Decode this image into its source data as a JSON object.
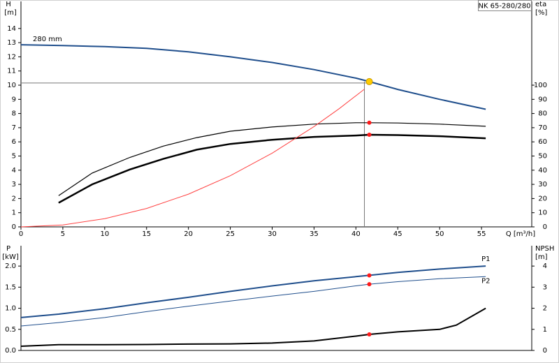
{
  "chart_data": [
    {
      "type": "line",
      "model": "NK 65-280/280",
      "y_label": "H",
      "y_unit": "[m]",
      "y2_label": "eta",
      "y2_unit": "[%]",
      "x_label": "Q [m³/h]",
      "xlim": [
        0,
        61
      ],
      "xticks": [
        0,
        5,
        10,
        15,
        20,
        25,
        30,
        35,
        40,
        45,
        50,
        55
      ],
      "ylim": [
        0,
        15
      ],
      "yticks": [
        0,
        1,
        2,
        3,
        4,
        5,
        6,
        7,
        8,
        9,
        10,
        11,
        12,
        13,
        14
      ],
      "y2lim": [
        0,
        150
      ],
      "y2ticks": [
        0,
        10,
        20,
        30,
        40,
        50,
        60,
        70,
        80,
        90,
        100
      ],
      "duty_point": {
        "x": 41.6,
        "y": 10.25
      },
      "series": [
        {
          "name": "280 mm",
          "color": "#1f4e8c",
          "width": 2,
          "x": [
            0,
            5,
            10,
            15,
            20,
            25,
            30,
            35,
            40,
            41.6,
            45,
            50,
            55.5
          ],
          "values": [
            12.85,
            12.8,
            12.72,
            12.6,
            12.35,
            12.0,
            11.6,
            11.1,
            10.5,
            10.25,
            9.7,
            9.0,
            8.3
          ]
        },
        {
          "color": "#000000",
          "width": 1.2,
          "axis": "y2",
          "x": [
            4.5,
            8.5,
            13,
            17,
            21,
            25,
            30,
            35,
            40,
            41.6,
            45,
            50,
            55.5
          ],
          "values": [
            22,
            38,
            49,
            57,
            63,
            67.5,
            70.5,
            72.5,
            73.5,
            73.5,
            73.3,
            72.5,
            71
          ]
        },
        {
          "color": "#000000",
          "width": 2.5,
          "axis": "y2",
          "x": [
            4.5,
            8.5,
            13,
            17,
            21,
            25,
            30,
            35,
            40,
            41.6,
            45,
            50,
            55.5
          ],
          "values": [
            17,
            30,
            40.5,
            48,
            54.5,
            58.5,
            61.5,
            63.5,
            64.5,
            65,
            64.8,
            64,
            62.5
          ]
        },
        {
          "color": "#ff4040",
          "width": 1,
          "x": [
            0,
            5,
            10,
            15,
            20,
            25,
            30,
            35,
            38,
            41
          ],
          "values": [
            0,
            0.14,
            0.58,
            1.3,
            2.31,
            3.61,
            5.2,
            7.08,
            8.34,
            9.71
          ]
        }
      ]
    },
    {
      "type": "line",
      "y_label": "P",
      "y_unit": "[kW]",
      "y2_label": "NPSH",
      "y2_unit": "[m]",
      "xlim": [
        0,
        61
      ],
      "ylim": [
        0,
        2.35
      ],
      "yticks": [
        {
          "value": 0,
          "label": "0.0"
        },
        {
          "value": 0.5,
          "label": "0.5"
        },
        {
          "value": 1,
          "label": "1.0"
        },
        {
          "value": 1.5,
          "label": "1.5"
        },
        {
          "value": 2,
          "label": "2.0"
        }
      ],
      "y2lim": [
        0,
        4.7
      ],
      "y2ticks": [
        0,
        1,
        2,
        3,
        4
      ],
      "duty_point": {
        "x": 41.6
      },
      "series": [
        {
          "name": "P1",
          "color": "#1f4e8c",
          "width": 2,
          "x": [
            0,
            4.5,
            10,
            15,
            20,
            25,
            30,
            35,
            40,
            41.6,
            45,
            50,
            55.5
          ],
          "values": [
            0.78,
            0.86,
            0.99,
            1.13,
            1.26,
            1.4,
            1.53,
            1.65,
            1.75,
            1.78,
            1.85,
            1.93,
            2.0
          ]
        },
        {
          "name": "P2",
          "color": "#1f4e8c",
          "width": 1,
          "x": [
            0,
            4.5,
            10,
            15,
            20,
            25,
            30,
            35,
            40,
            41.6,
            45,
            50,
            55.5
          ],
          "values": [
            0.58,
            0.66,
            0.78,
            0.92,
            1.05,
            1.17,
            1.29,
            1.4,
            1.53,
            1.57,
            1.63,
            1.7,
            1.75
          ]
        },
        {
          "color": "#000000",
          "width": 2,
          "axis": "y2",
          "x": [
            0,
            4.5,
            10,
            15,
            20,
            25,
            30,
            35,
            40,
            41.6,
            45,
            50,
            52,
            55.5
          ],
          "values": [
            0.2,
            0.27,
            0.27,
            0.28,
            0.3,
            0.31,
            0.35,
            0.45,
            0.68,
            0.76,
            0.88,
            1.0,
            1.2,
            2.0
          ]
        }
      ]
    }
  ]
}
